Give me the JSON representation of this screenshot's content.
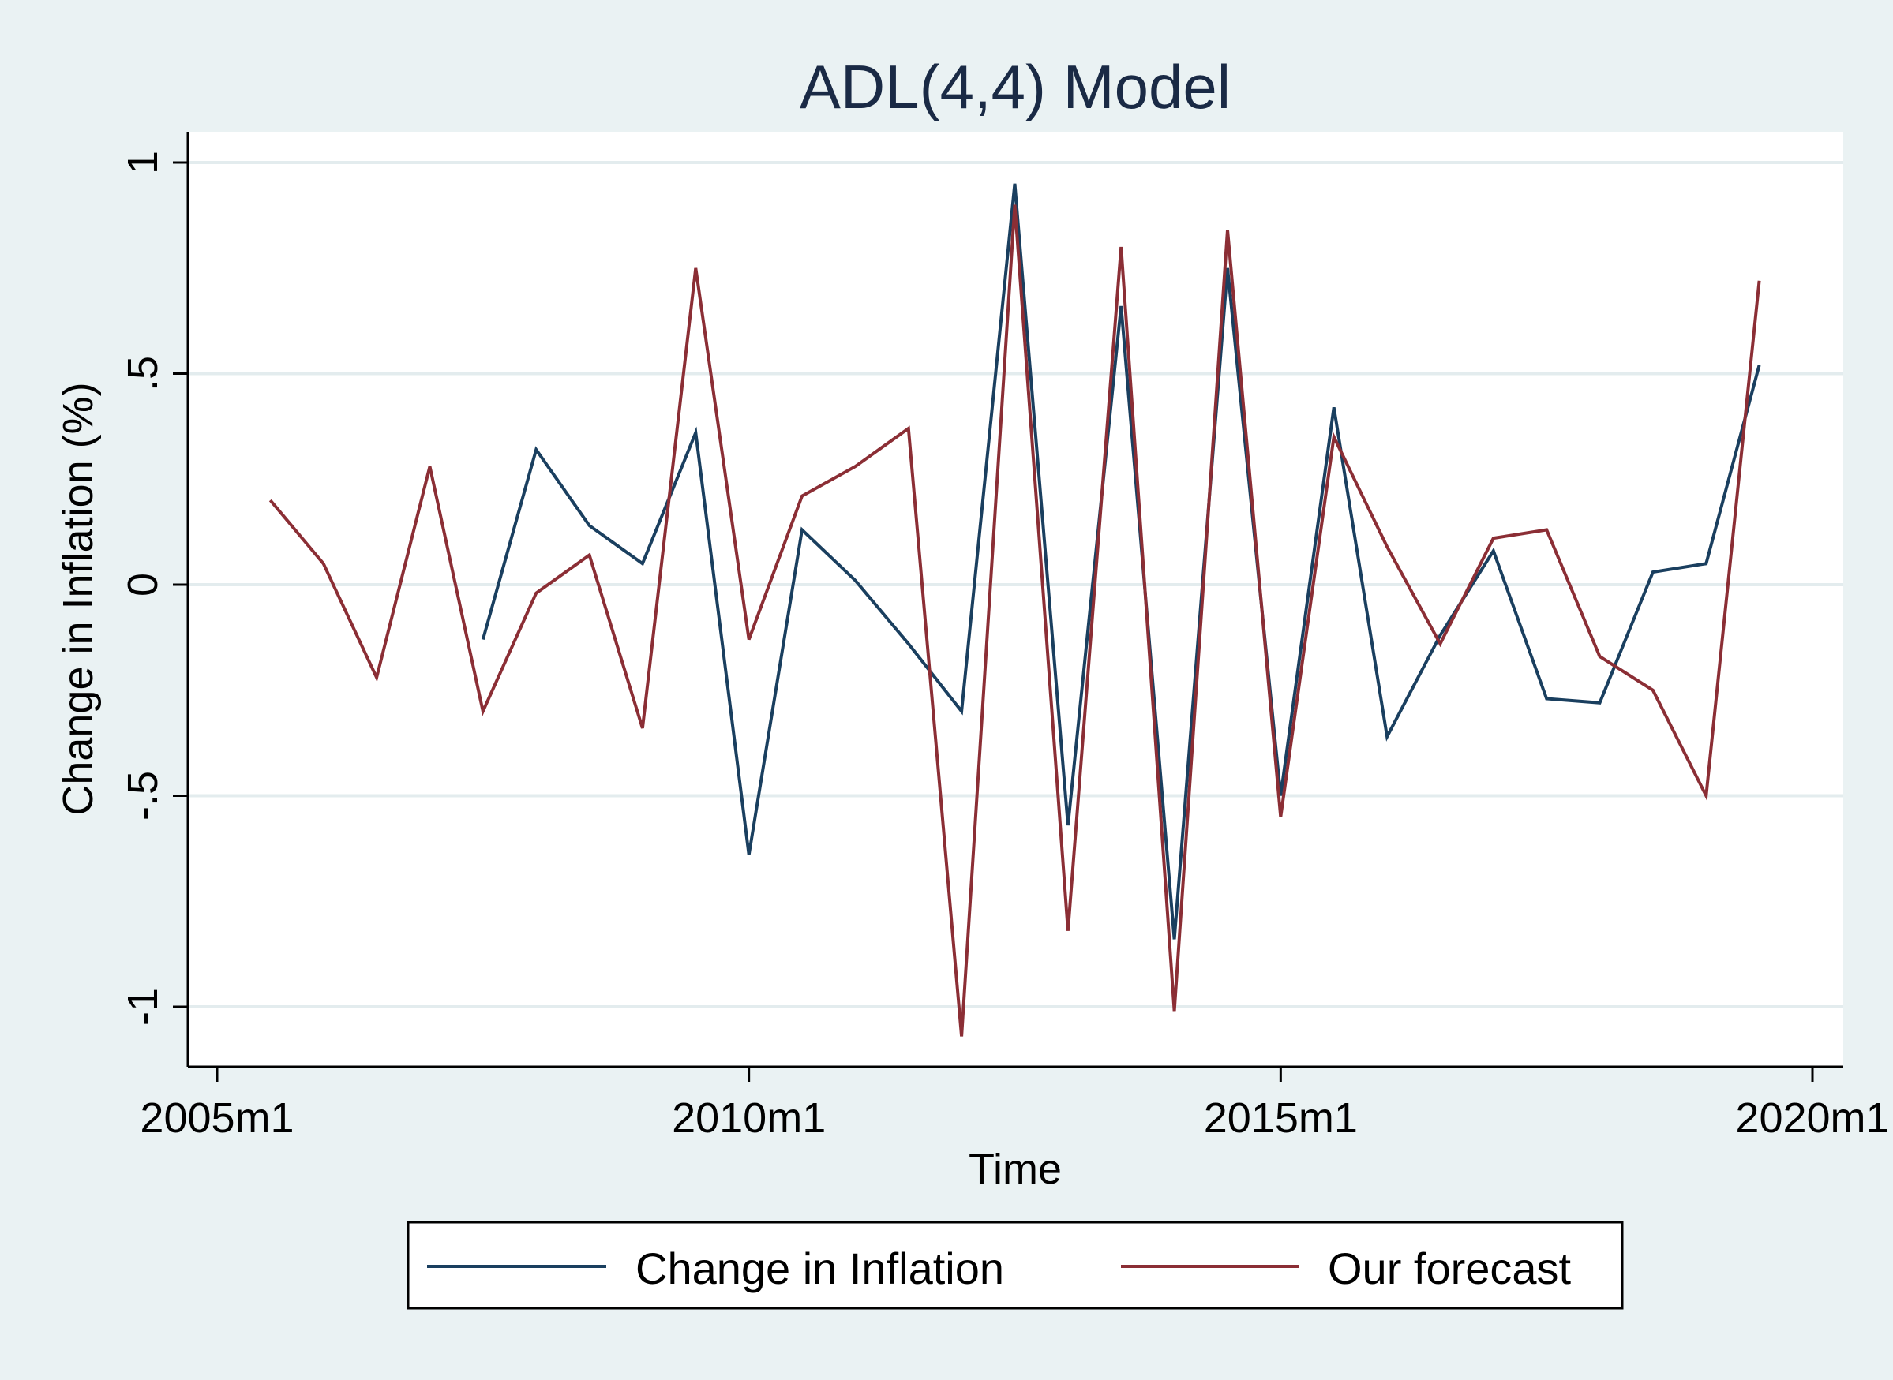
{
  "chart_data": {
    "type": "line",
    "title": "ADL(4,4) Model",
    "xlabel": "Time",
    "ylabel": "Change in Inflation (%)",
    "x_ticks": [
      "2005m1",
      "2010m1",
      "2015m1",
      "2020m1"
    ],
    "y_ticks": [
      "-1",
      "-.5",
      "0",
      ".5",
      "1"
    ],
    "x_range": [
      "2005m1",
      "2020m1"
    ],
    "ylim": [
      -1.15,
      1.07
    ],
    "grid": true,
    "legend_position": "bottom",
    "series": [
      {
        "name": "Change in Inflation",
        "color": "#1a3f5f",
        "points": [
          {
            "x": "2007m7",
            "y": -0.13
          },
          {
            "x": "2008m1",
            "y": 0.32
          },
          {
            "x": "2008m7",
            "y": 0.14
          },
          {
            "x": "2009m1",
            "y": 0.05
          },
          {
            "x": "2009m7",
            "y": 0.36
          },
          {
            "x": "2010m1",
            "y": -0.64
          },
          {
            "x": "2010m7",
            "y": 0.13
          },
          {
            "x": "2011m1",
            "y": 0.01
          },
          {
            "x": "2011m7",
            "y": -0.14
          },
          {
            "x": "2012m1",
            "y": -0.3
          },
          {
            "x": "2012m7",
            "y": 0.95
          },
          {
            "x": "2013m1",
            "y": -0.57
          },
          {
            "x": "2013m7",
            "y": 0.66
          },
          {
            "x": "2014m1",
            "y": -0.84
          },
          {
            "x": "2014m7",
            "y": 0.75
          },
          {
            "x": "2015m1",
            "y": -0.5
          },
          {
            "x": "2015m7",
            "y": 0.42
          },
          {
            "x": "2016m1",
            "y": -0.36
          },
          {
            "x": "2016m7",
            "y": -0.12
          },
          {
            "x": "2017m1",
            "y": 0.08
          },
          {
            "x": "2017m7",
            "y": -0.27
          },
          {
            "x": "2018m1",
            "y": -0.28
          },
          {
            "x": "2018m7",
            "y": 0.03
          },
          {
            "x": "2019m1",
            "y": 0.05
          },
          {
            "x": "2019m7",
            "y": 0.52
          }
        ]
      },
      {
        "name": "Our forecast",
        "color": "#8b2e35",
        "points": [
          {
            "x": "2005m7",
            "y": 0.2
          },
          {
            "x": "2006m1",
            "y": 0.05
          },
          {
            "x": "2006m7",
            "y": -0.22
          },
          {
            "x": "2007m1",
            "y": 0.28
          },
          {
            "x": "2007m7",
            "y": -0.3
          },
          {
            "x": "2008m1",
            "y": -0.02
          },
          {
            "x": "2008m7",
            "y": 0.07
          },
          {
            "x": "2009m1",
            "y": -0.34
          },
          {
            "x": "2009m7",
            "y": 0.75
          },
          {
            "x": "2010m1",
            "y": -0.13
          },
          {
            "x": "2010m7",
            "y": 0.21
          },
          {
            "x": "2011m1",
            "y": 0.28
          },
          {
            "x": "2011m7",
            "y": 0.37
          },
          {
            "x": "2012m1",
            "y": -1.07
          },
          {
            "x": "2012m7",
            "y": 0.9
          },
          {
            "x": "2013m1",
            "y": -0.82
          },
          {
            "x": "2013m7",
            "y": 0.8
          },
          {
            "x": "2014m1",
            "y": -1.01
          },
          {
            "x": "2014m7",
            "y": 0.84
          },
          {
            "x": "2015m1",
            "y": -0.55
          },
          {
            "x": "2015m7",
            "y": 0.35
          },
          {
            "x": "2016m1",
            "y": 0.09
          },
          {
            "x": "2016m7",
            "y": -0.14
          },
          {
            "x": "2017m1",
            "y": 0.11
          },
          {
            "x": "2017m7",
            "y": 0.13
          },
          {
            "x": "2018m1",
            "y": -0.17
          },
          {
            "x": "2018m7",
            "y": -0.25
          },
          {
            "x": "2019m1",
            "y": -0.5
          },
          {
            "x": "2019m7",
            "y": 0.72
          }
        ]
      }
    ]
  }
}
